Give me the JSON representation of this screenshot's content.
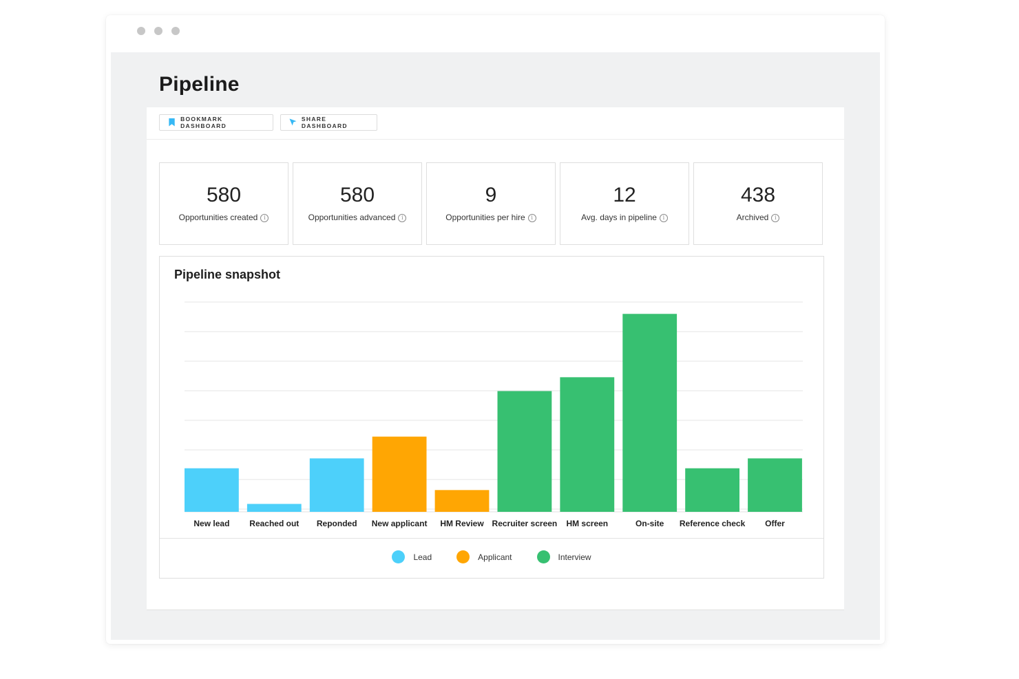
{
  "page": {
    "title": "Pipeline"
  },
  "toolbar": {
    "bookmark_label": "BOOKMARK DASHBOARD",
    "share_label": "SHARE DASHBOARD"
  },
  "stats": [
    {
      "value": "580",
      "label": "Opportunities created"
    },
    {
      "value": "580",
      "label": "Opportunities advanced"
    },
    {
      "value": "9",
      "label": "Opportunities per hire"
    },
    {
      "value": "12",
      "label": "Avg. days in pipeline"
    },
    {
      "value": "438",
      "label": "Archived"
    }
  ],
  "colors": {
    "lead": "#4dd0fa",
    "applicant": "#ffa603",
    "interview": "#37c071",
    "bookmark_icon": "#36b8f5"
  },
  "icons": {
    "bookmark": "bookmark-icon",
    "share": "cursor-arrow-icon",
    "info": "info-icon"
  },
  "chart_data": {
    "type": "bar",
    "title": "Pipeline snapshot",
    "categories": [
      "New lead",
      "Reached out",
      "Reponded",
      "New applicant",
      "HM Review",
      "Recruiter screen",
      "HM screen",
      "On-site",
      "Reference check",
      "Offer"
    ],
    "values": [
      22,
      4,
      27,
      38,
      11,
      61,
      68,
      100,
      22,
      27
    ],
    "groups": [
      "Lead",
      "Lead",
      "Lead",
      "Applicant",
      "Applicant",
      "Interview",
      "Interview",
      "Interview",
      "Interview",
      "Interview"
    ],
    "legend": [
      {
        "name": "Lead",
        "color": "#4dd0fa"
      },
      {
        "name": "Applicant",
        "color": "#ffa603"
      },
      {
        "name": "Interview",
        "color": "#37c071"
      }
    ],
    "ylim": [
      0,
      106
    ],
    "grid": true,
    "legend_position": "bottom-center",
    "xlabel": "",
    "ylabel": ""
  }
}
